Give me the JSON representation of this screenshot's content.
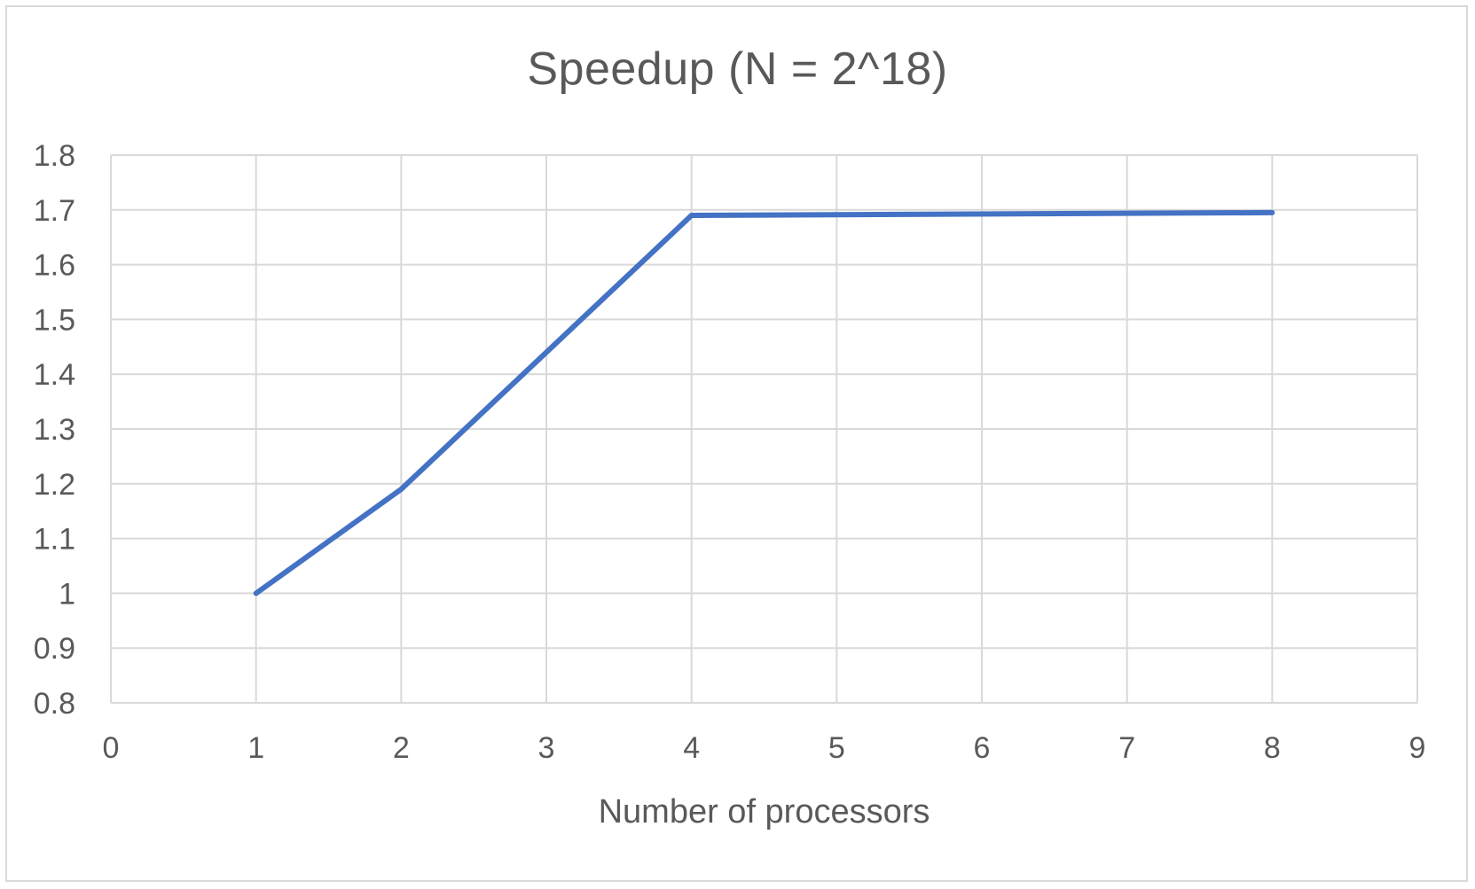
{
  "chart_data": {
    "type": "line",
    "title": "Speedup (N = 2^18)",
    "xlabel": "Number of processors",
    "ylabel": "",
    "xlim": [
      0,
      9
    ],
    "ylim": [
      0.8,
      1.8
    ],
    "x_ticks": [
      "0",
      "1",
      "2",
      "3",
      "4",
      "5",
      "6",
      "7",
      "8",
      "9"
    ],
    "y_ticks": [
      "0.8",
      "0.9",
      "1",
      "1.1",
      "1.2",
      "1.3",
      "1.4",
      "1.5",
      "1.6",
      "1.7",
      "1.8"
    ],
    "grid": true,
    "legend": "none",
    "series": [
      {
        "x": [
          1,
          2,
          4,
          8
        ],
        "values": [
          1.0,
          1.19,
          1.69,
          1.695
        ],
        "color": "#4472c4"
      }
    ]
  }
}
